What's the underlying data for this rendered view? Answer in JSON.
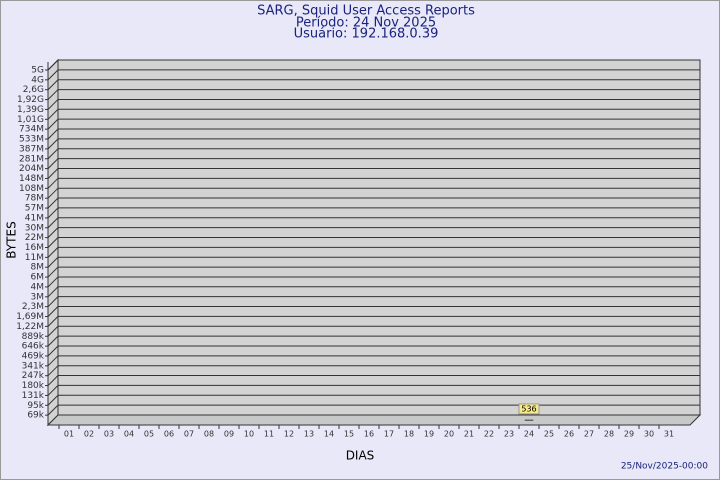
{
  "chart_data": {
    "type": "bar",
    "title": "SARG, Squid User Access Reports",
    "subtitle": "Período: 24 Nov 2025",
    "user": "Usuário: 192.168.0.39",
    "x_label": "DIAS",
    "y_label": "BYTES",
    "footer": "25/Nov/2025-00:00",
    "color": "#f5e98a",
    "categories": [
      "01",
      "02",
      "03",
      "04",
      "05",
      "06",
      "07",
      "08",
      "09",
      "10",
      "11",
      "12",
      "13",
      "14",
      "15",
      "16",
      "17",
      "18",
      "19",
      "20",
      "21",
      "22",
      "23",
      "24",
      "25",
      "26",
      "27",
      "28",
      "29",
      "30",
      "31"
    ],
    "values": [
      null,
      null,
      null,
      null,
      null,
      null,
      null,
      null,
      null,
      null,
      null,
      null,
      null,
      null,
      null,
      null,
      null,
      null,
      null,
      null,
      null,
      null,
      null,
      536,
      null,
      null,
      null,
      null,
      null,
      null,
      null
    ],
    "ylim": [
      0,
      5000000000
    ],
    "yticks": [
      {
        "value": 69000,
        "label": "69k"
      },
      {
        "value": 95000,
        "label": "95k"
      },
      {
        "value": 131000,
        "label": "131k"
      },
      {
        "value": 180000,
        "label": "180k"
      },
      {
        "value": 247000,
        "label": "247k"
      },
      {
        "value": 341000,
        "label": "341k"
      },
      {
        "value": 469000,
        "label": "469k"
      },
      {
        "value": 646000,
        "label": "646k"
      },
      {
        "value": 889000,
        "label": "889k"
      },
      {
        "value": 1220000,
        "label": "1,22M"
      },
      {
        "value": 1690000,
        "label": "1,69M"
      },
      {
        "value": 2300000,
        "label": "2,3M"
      },
      {
        "value": 3000000,
        "label": "3M"
      },
      {
        "value": 4000000,
        "label": "4M"
      },
      {
        "value": 6000000,
        "label": "6M"
      },
      {
        "value": 8000000,
        "label": "8M"
      },
      {
        "value": 11000000,
        "label": "11M"
      },
      {
        "value": 16000000,
        "label": "16M"
      },
      {
        "value": 22000000,
        "label": "22M"
      },
      {
        "value": 30000000,
        "label": "30M"
      },
      {
        "value": 41000000,
        "label": "41M"
      },
      {
        "value": 57000000,
        "label": "57M"
      },
      {
        "value": 78000000,
        "label": "78M"
      },
      {
        "value": 108000000,
        "label": "108M"
      },
      {
        "value": 148000000,
        "label": "148M"
      },
      {
        "value": 204000000,
        "label": "204M"
      },
      {
        "value": 281000000,
        "label": "281M"
      },
      {
        "value": 387000000,
        "label": "387M"
      },
      {
        "value": 533000000,
        "label": "533M"
      },
      {
        "value": 734000000,
        "label": "734M"
      },
      {
        "value": 1010000000,
        "label": "1,01G"
      },
      {
        "value": 1390000000,
        "label": "1,39G"
      },
      {
        "value": 1920000000,
        "label": "1,92G"
      },
      {
        "value": 2600000000,
        "label": "2,6G"
      },
      {
        "value": 4000000000,
        "label": "4G"
      },
      {
        "value": 5000000000,
        "label": "5G"
      }
    ],
    "grid": true
  }
}
